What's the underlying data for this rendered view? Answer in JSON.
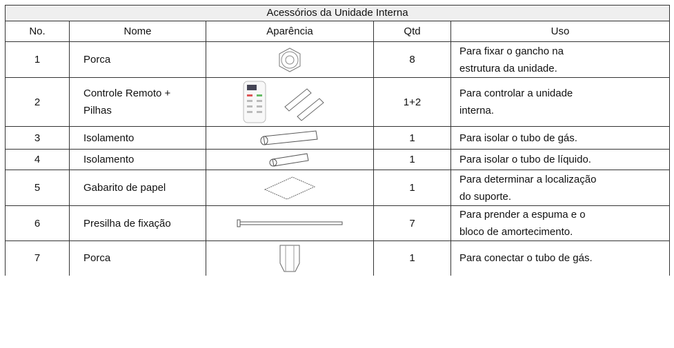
{
  "table": {
    "title": "Acessórios da Unidade Interna",
    "header": [
      "No.",
      "Nome",
      "Aparência",
      "Qtd",
      "Uso"
    ],
    "rows": [
      {
        "no": "1",
        "nome": "Porca",
        "qtd": "8",
        "uso": "Para fixar o gancho na estrutura da unidade."
      },
      {
        "no": "2",
        "nome": "Controle Remoto + Pilhas",
        "qtd": "1+2",
        "uso": "Para controlar a unidade interna."
      },
      {
        "no": "3",
        "nome": "Isolamento",
        "qtd": "1",
        "uso": "Para isolar o tubo de gás."
      },
      {
        "no": "4",
        "nome": "Isolamento",
        "qtd": "1",
        "uso": "Para isolar o tubo de líquido."
      },
      {
        "no": "5",
        "nome": "Gabarito de papel",
        "qtd": "1",
        "uso": "Para determinar a localização do suporte."
      },
      {
        "no": "6",
        "nome": "Presilha de fixação",
        "qtd": "7",
        "uso": "Para prender a espuma e o bloco de amortecimento."
      },
      {
        "no": "7",
        "nome": "Porca",
        "qtd": "1",
        "uso": "Para conectar o tubo de gás."
      }
    ]
  }
}
